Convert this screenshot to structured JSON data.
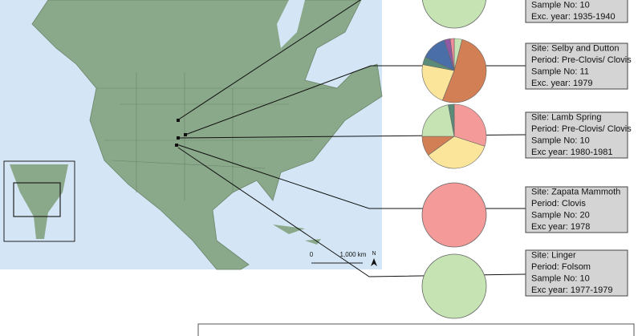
{
  "map": {
    "scale_start": "0",
    "scale_end": "1,000 km",
    "north": "N"
  },
  "panels": [
    {
      "lines": [
        "Sample No: 10",
        "Exc. year: 1935-1940"
      ],
      "slices": [
        {
          "value": 100,
          "color": "#c6e3b3"
        }
      ]
    },
    {
      "lines": [
        "Site: Selby and Dutton",
        "Period: Pre-Clovis/ Clovis",
        "Sample No: 11",
        "Exc. year: 1979"
      ],
      "slices": [
        {
          "value": 4,
          "color": "#c6e3b3"
        },
        {
          "value": 52,
          "color": "#d27f55"
        },
        {
          "value": 22,
          "color": "#fbe59a"
        },
        {
          "value": 4,
          "color": "#5a8a78"
        },
        {
          "value": 13,
          "color": "#4a6fa8"
        },
        {
          "value": 3,
          "color": "#8f5aa3"
        },
        {
          "value": 2,
          "color": "#f28c9a"
        }
      ]
    },
    {
      "lines": [
        "Site: Lamb Spring",
        "Period: Pre-Clovis/ Clovis",
        "Sample No: 10",
        "Exc year: 1980-1981"
      ],
      "slices": [
        {
          "value": 30,
          "color": "#f49a98"
        },
        {
          "value": 35,
          "color": "#fbe59a"
        },
        {
          "value": 10,
          "color": "#d27f55"
        },
        {
          "value": 22,
          "color": "#c6e3b3"
        },
        {
          "value": 3,
          "color": "#5a8a78"
        }
      ]
    },
    {
      "lines": [
        "Site: Zapata Mammoth",
        "Period: Clovis",
        "Sample No: 20",
        "Exc year: 1978"
      ],
      "slices": [
        {
          "value": 100,
          "color": "#f49a98"
        }
      ]
    },
    {
      "lines": [
        "Site: Linger",
        "Period: Folsom",
        "Sample No: 10",
        "Exc year: 1977-1979"
      ],
      "slices": [
        {
          "value": 100,
          "color": "#c6e3b3"
        }
      ]
    }
  ]
}
